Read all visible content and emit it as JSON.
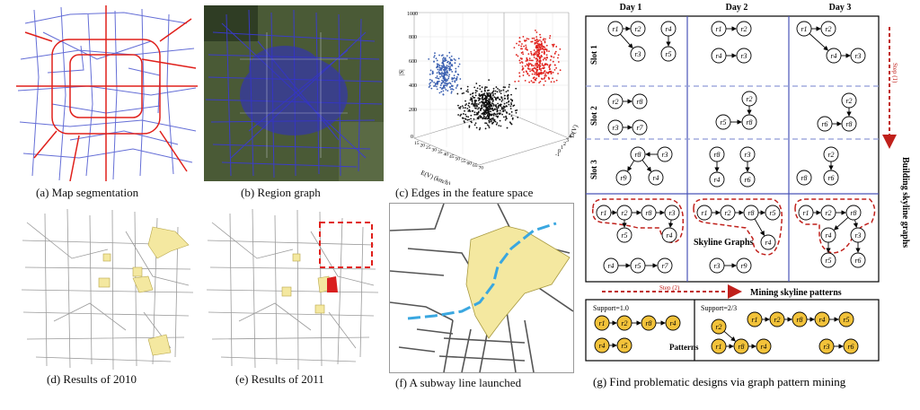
{
  "captions": {
    "a": "(a) Map segmentation",
    "b": "(b) Region graph",
    "c": "(c) Edges in the feature space",
    "d": "(d) Results of 2010",
    "e": "(e) Results of 2011",
    "f": "(f) A subway line launched",
    "g": "(g) Find problematic designs via graph pattern mining"
  },
  "scatter3d": {
    "zlabel": "|S|",
    "xlabel": "E(V) (km/h)",
    "ylabel": "D(V)",
    "z_ticks": [
      "1000",
      "800",
      "600",
      "400",
      "200",
      "0"
    ],
    "x_ticks": [
      "15",
      "20",
      "25",
      "30",
      "35",
      "40",
      "45",
      "50",
      "55",
      "60",
      "65",
      "70"
    ],
    "y_ticks": [
      "4",
      "3",
      "2",
      "1",
      "0",
      "-1"
    ],
    "series_colors": {
      "blue": "#3a5fb0",
      "black": "#111111",
      "red": "#e0201b"
    }
  },
  "skyline": {
    "days": [
      "Day 1",
      "Day 2",
      "Day 3"
    ],
    "slots": [
      "Slot 1",
      "Slot 2",
      "Slot 3"
    ],
    "step1": "Step (1)",
    "step2": "Step (2)",
    "building_label": "Building skyline graphs",
    "skyline_graphs_label": "Skyline Graphs",
    "mining_label": "Mining skyline patterns",
    "support1": "Support=1.0",
    "support2": "Support=2/3",
    "patterns_label": "Patterns",
    "nodes": {
      "d1s1": [
        "r1",
        "r2",
        "r3",
        "r4",
        "r5"
      ],
      "d2s1": [
        "r1",
        "r2",
        "r4",
        "r3"
      ],
      "d3s1": [
        "r1",
        "r2",
        "r4",
        "r3"
      ],
      "d1s2": [
        "r2",
        "r8",
        "r3",
        "r7"
      ],
      "d2s2": [
        "r2",
        "r5",
        "r8"
      ],
      "d3s2": [
        "r2",
        "r6",
        "r8"
      ],
      "d1s3": [
        "r8",
        "r3",
        "r9",
        "r4"
      ],
      "d2s3": [
        "r8",
        "r4",
        "r3",
        "r6"
      ],
      "d3s3": [
        "r2",
        "r8",
        "r6"
      ],
      "d1sky": [
        "r1",
        "r2",
        "r8",
        "r3",
        "r5",
        "r4",
        "r4",
        "r5",
        "r7"
      ],
      "d2sky": [
        "r1",
        "r2",
        "r8",
        "r5",
        "r4",
        "r3",
        "r9"
      ],
      "d3sky": [
        "r1",
        "r2",
        "r8",
        "r4",
        "r3",
        "r5",
        "r6"
      ],
      "pat1": [
        "r1",
        "r2",
        "r8",
        "r4",
        "r4",
        "r5"
      ],
      "pat2": [
        "r2",
        "r1",
        "r2",
        "r8",
        "r4",
        "r5",
        "r1",
        "r8",
        "r4",
        "r3",
        "r6"
      ]
    }
  },
  "colors": {
    "red": "#e0201b",
    "blue": "#3636c8",
    "yellow": "#f4e8a0",
    "node_yellow": "#f2c23a",
    "grid_blue": "#4a55b8",
    "dash_blue": "#8f9bd8"
  }
}
